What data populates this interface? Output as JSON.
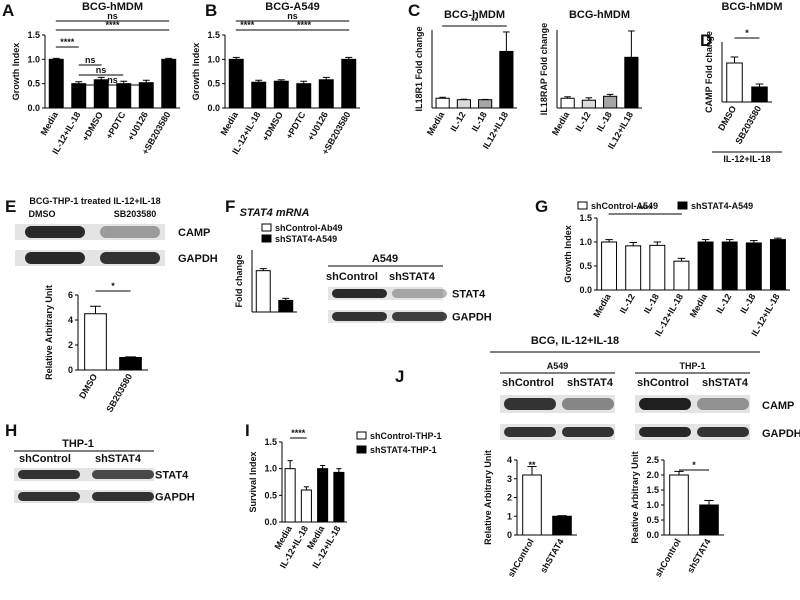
{
  "panel_labels": [
    "A",
    "B",
    "C",
    "D",
    "E",
    "F",
    "G",
    "H",
    "I",
    "J"
  ],
  "chart_data": [
    {
      "type": "bar",
      "title": "BCG-hMDM",
      "y_label": "Growth Index",
      "categories": [
        "Media",
        "IL-12+IL-18",
        "+DMSO",
        "+PDTC",
        "+U0126",
        "+SB203580"
      ],
      "values": [
        1.0,
        0.5,
        0.58,
        0.5,
        0.52,
        1.0
      ],
      "errors": [
        0.02,
        0.04,
        0.05,
        0.05,
        0.05,
        0.02
      ],
      "color": "#000000",
      "ylim": [
        0,
        1.5
      ],
      "yticks": [
        {
          "value": 0,
          "label": "0.0"
        },
        0.5,
        {
          "value": 1,
          "label": "1.0"
        },
        1.5
      ],
      "annotations": [
        "ns",
        "****",
        "****",
        "ns",
        "ns",
        "ns"
      ]
    },
    {
      "type": "bar",
      "title": "BCG-A549",
      "y_label": "Growth Index",
      "categories": [
        "Media",
        "IL-12+IL-18",
        "+DMSO",
        "+PDTC",
        "+U0126",
        "+SB203580"
      ],
      "values": [
        1.0,
        0.53,
        0.55,
        0.5,
        0.58,
        1.0
      ],
      "errors": [
        0.04,
        0.04,
        0.03,
        0.05,
        0.05,
        0.04
      ],
      "color": "#000000",
      "ylim": [
        0,
        1.5
      ],
      "yticks": [
        {
          "value": 0,
          "label": "0.0"
        },
        0.5,
        {
          "value": 1,
          "label": "1.0"
        },
        1.5
      ],
      "annotations": [
        "ns",
        "****",
        "****"
      ]
    },
    {
      "type": "bar",
      "title": "BCG-hMDM",
      "y_label": "IL18R1 Fold change",
      "categories": [
        "Media",
        "IL-12",
        "IL-18",
        "IL12+IL18"
      ],
      "values": [
        1.0,
        0.85,
        0.85,
        5.8
      ],
      "errors": [
        0.1,
        0.05,
        0.03,
        2.0
      ],
      "colors": [
        "#ffffff",
        "#d9d9d9",
        "#a6a6a6",
        "#000000"
      ],
      "ylim": [
        0,
        8
      ],
      "annotations": [
        "**"
      ]
    },
    {
      "type": "bar",
      "title": "BCG-hMDM",
      "y_label": "IL18RAP Fold change",
      "categories": [
        "Media",
        "IL-12",
        "IL-18",
        "IL12+IL18"
      ],
      "values": [
        1.0,
        0.8,
        1.2,
        5.2
      ],
      "errors": [
        0.15,
        0.25,
        0.2,
        2.7
      ],
      "colors": [
        "#ffffff",
        "#d9d9d9",
        "#a6a6a6",
        "#000000"
      ],
      "ylim": [
        0,
        8
      ]
    },
    {
      "type": "bar",
      "title": "BCG-hMDM",
      "y_label": "CAMP Fold change",
      "categories": [
        "DMSO",
        "SB203580"
      ],
      "values": [
        2.6,
        1.0
      ],
      "errors": [
        0.4,
        0.2
      ],
      "colors": [
        "#ffffff",
        "#000000"
      ],
      "ylim": [
        0,
        4
      ],
      "annotations": [
        "*"
      ],
      "group_label": "IL-12+IL-18"
    },
    {
      "type": "bar",
      "y_label": "Relative Arbitrary Unit",
      "categories": [
        "DMSO",
        "SB203580"
      ],
      "values": [
        4.5,
        1.0
      ],
      "errors": [
        0.6,
        0.05
      ],
      "colors": [
        "#ffffff",
        "#000000"
      ],
      "ylim": [
        0,
        6
      ],
      "yticks": [
        0,
        2,
        4,
        6
      ],
      "annotations": [
        "*"
      ]
    },
    {
      "type": "bar",
      "title": "STAT4 mRNA",
      "y_label": "Fold change",
      "categories": [
        null,
        null
      ],
      "series": [
        {
          "name": "shControl-Ab49",
          "color": "#ffffff",
          "values": [
            1.0,
            null
          ],
          "errors": [
            0.05,
            null
          ]
        },
        {
          "name": "shSTAT4-A549",
          "color": "#000000",
          "values": [
            null,
            0.28
          ],
          "errors": [
            null,
            0.05
          ]
        }
      ],
      "ylim": [
        0,
        1.5
      ]
    },
    {
      "type": "bar",
      "y_label": "Growth Index",
      "categories": [
        "Media",
        "IL-12",
        "IL-18",
        "IL-12+IL-18",
        "Media",
        "IL-12",
        "IL-18",
        "IL-12+IL-18"
      ],
      "series": [
        {
          "name": "shControl-A549",
          "color": "#ffffff",
          "values": [
            1.0,
            0.92,
            0.93,
            0.6,
            null,
            null,
            null,
            null
          ],
          "errors": [
            0.05,
            0.07,
            0.07,
            0.06,
            null,
            null,
            null,
            null
          ]
        },
        {
          "name": "shSTAT4-A549",
          "color": "#000000",
          "values": [
            null,
            null,
            null,
            null,
            1.0,
            1.0,
            0.98,
            1.05
          ],
          "errors": [
            null,
            null,
            null,
            null,
            0.05,
            0.05,
            0.05,
            0.03
          ]
        }
      ],
      "ylim": [
        0,
        1.5
      ],
      "yticks": [
        {
          "value": 0,
          "label": "0.0"
        },
        0.5,
        {
          "value": 1,
          "label": "1.0"
        },
        1.5
      ],
      "annotations": [
        "****"
      ]
    },
    {
      "type": "bar",
      "y_label": "Survival Index",
      "categories": [
        "Media",
        "IL-12+IL-18",
        "Media",
        "IL-12+IL-18"
      ],
      "series": [
        {
          "name": "shControl-THP-1",
          "color": "#ffffff",
          "values": [
            1.0,
            0.6,
            null,
            null
          ],
          "errors": [
            0.15,
            0.06,
            null,
            null
          ]
        },
        {
          "name": "shSTAT4-THP-1",
          "color": "#000000",
          "values": [
            null,
            null,
            1.0,
            0.93
          ],
          "errors": [
            null,
            null,
            0.06,
            0.07
          ]
        }
      ],
      "ylim": [
        0,
        1.5
      ],
      "yticks": [
        {
          "value": 0,
          "label": "0.0"
        },
        0.5,
        {
          "value": 1,
          "label": "1.0"
        },
        1.5
      ],
      "annotations": [
        "****"
      ]
    },
    {
      "type": "bar",
      "y_label": "Relative Arbitrary Unit",
      "categories": [
        "shControl",
        "shSTAT4"
      ],
      "values": [
        3.2,
        1.0
      ],
      "errors": [
        0.45,
        0.03
      ],
      "colors": [
        "#ffffff",
        "#000000"
      ],
      "ylim": [
        0,
        4
      ],
      "yticks": [
        0,
        1,
        2,
        3,
        4
      ],
      "annotations": [
        "**"
      ]
    },
    {
      "type": "bar",
      "y_label": "Reative Arbitrary Unit",
      "categories": [
        "shControl",
        "shSTAT4"
      ],
      "values": [
        2.0,
        1.0
      ],
      "errors": [
        0.12,
        0.15
      ],
      "colors": [
        "#ffffff",
        "#000000"
      ],
      "ylim": [
        0,
        2.5
      ],
      "yticks": [
        {
          "value": 0,
          "label": "0.0"
        },
        0.5,
        {
          "value": 1,
          "label": "1.0"
        },
        1.5,
        {
          "value": 2,
          "label": "2.0"
        },
        2.5
      ],
      "annotations": [
        "*"
      ]
    }
  ],
  "blots": [
    {
      "title": "BCG-THP-1 treated IL-12+IL-18",
      "lanes": [
        "DMSO",
        "SB203580"
      ],
      "rows": [
        "CAMP",
        "GAPDH"
      ]
    },
    {
      "title": "A549",
      "lanes": [
        "shControl",
        "shSTAT4"
      ],
      "rows": [
        "STAT4",
        "GAPDH"
      ]
    },
    {
      "title": "THP-1",
      "lanes": [
        "shControl",
        "shSTAT4"
      ],
      "rows": [
        "STAT4",
        "GAPDH"
      ]
    },
    {
      "title": "BCG, IL-12+IL-18",
      "groups": [
        {
          "name": "A549",
          "lanes": [
            "shControl",
            "shSTAT4"
          ]
        },
        {
          "name": "THP-1",
          "lanes": [
            "shControl",
            "shSTAT4"
          ]
        }
      ],
      "rows": [
        "CAMP",
        "GAPDH"
      ]
    }
  ]
}
